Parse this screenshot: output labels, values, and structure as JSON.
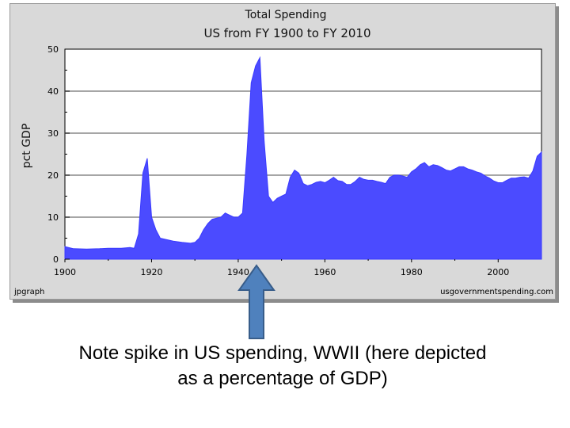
{
  "chart_data": {
    "type": "area",
    "title": "Total Spending",
    "subtitle": "US from FY 1900 to FY 2010",
    "ylabel": "pct GDP",
    "xlabel": "",
    "xlim": [
      1900,
      2010
    ],
    "ylim": [
      0,
      50
    ],
    "x_ticks": [
      "1900",
      "1920",
      "1940",
      "1960",
      "1980",
      "2000"
    ],
    "y_ticks": [
      "0",
      "10",
      "20",
      "30",
      "40",
      "50"
    ],
    "grid": true,
    "fill_color": "#4b4bff",
    "points": [
      [
        1900,
        3.0
      ],
      [
        1902,
        2.5
      ],
      [
        1905,
        2.4
      ],
      [
        1908,
        2.5
      ],
      [
        1910,
        2.6
      ],
      [
        1913,
        2.6
      ],
      [
        1915,
        2.8
      ],
      [
        1916,
        2.6
      ],
      [
        1917,
        6.0
      ],
      [
        1918,
        20.5
      ],
      [
        1919,
        24.0
      ],
      [
        1920,
        10.0
      ],
      [
        1921,
        7.0
      ],
      [
        1922,
        5.0
      ],
      [
        1925,
        4.3
      ],
      [
        1927,
        4.0
      ],
      [
        1929,
        3.8
      ],
      [
        1930,
        4.0
      ],
      [
        1931,
        5.0
      ],
      [
        1932,
        7.0
      ],
      [
        1933,
        8.5
      ],
      [
        1934,
        9.5
      ],
      [
        1936,
        10.0
      ],
      [
        1937,
        11.0
      ],
      [
        1938,
        10.5
      ],
      [
        1939,
        10.0
      ],
      [
        1940,
        10.0
      ],
      [
        1941,
        11.0
      ],
      [
        1942,
        25.0
      ],
      [
        1943,
        42.0
      ],
      [
        1944,
        46.0
      ],
      [
        1945,
        48.0
      ],
      [
        1946,
        28.0
      ],
      [
        1947,
        15.0
      ],
      [
        1948,
        13.5
      ],
      [
        1949,
        14.5
      ],
      [
        1950,
        15.0
      ],
      [
        1951,
        15.5
      ],
      [
        1952,
        19.5
      ],
      [
        1953,
        21.2
      ],
      [
        1954,
        20.5
      ],
      [
        1955,
        18.0
      ],
      [
        1956,
        17.5
      ],
      [
        1957,
        17.8
      ],
      [
        1958,
        18.3
      ],
      [
        1959,
        18.5
      ],
      [
        1960,
        18.2
      ],
      [
        1961,
        18.8
      ],
      [
        1962,
        19.5
      ],
      [
        1963,
        18.7
      ],
      [
        1964,
        18.5
      ],
      [
        1965,
        17.8
      ],
      [
        1966,
        17.8
      ],
      [
        1967,
        18.5
      ],
      [
        1968,
        19.5
      ],
      [
        1969,
        19.0
      ],
      [
        1970,
        18.8
      ],
      [
        1971,
        18.8
      ],
      [
        1972,
        18.5
      ],
      [
        1973,
        18.3
      ],
      [
        1974,
        18.0
      ],
      [
        1975,
        19.5
      ],
      [
        1976,
        20.0
      ],
      [
        1977,
        20.0
      ],
      [
        1978,
        19.8
      ],
      [
        1979,
        19.5
      ],
      [
        1980,
        20.8
      ],
      [
        1981,
        21.5
      ],
      [
        1982,
        22.5
      ],
      [
        1983,
        23.0
      ],
      [
        1984,
        22.0
      ],
      [
        1985,
        22.5
      ],
      [
        1986,
        22.3
      ],
      [
        1987,
        21.8
      ],
      [
        1988,
        21.2
      ],
      [
        1989,
        21.0
      ],
      [
        1990,
        21.5
      ],
      [
        1991,
        22.0
      ],
      [
        1992,
        22.0
      ],
      [
        1993,
        21.5
      ],
      [
        1994,
        21.2
      ],
      [
        1995,
        20.8
      ],
      [
        1996,
        20.5
      ],
      [
        1997,
        19.8
      ],
      [
        1998,
        19.3
      ],
      [
        1999,
        18.6
      ],
      [
        2000,
        18.2
      ],
      [
        2001,
        18.2
      ],
      [
        2002,
        18.8
      ],
      [
        2003,
        19.3
      ],
      [
        2004,
        19.3
      ],
      [
        2005,
        19.5
      ],
      [
        2006,
        19.6
      ],
      [
        2007,
        19.3
      ],
      [
        2008,
        21.0
      ],
      [
        2009,
        24.5
      ],
      [
        2010,
        25.5
      ]
    ]
  },
  "footer": {
    "left": "jpgraph",
    "right": "usgovernmentspending.com"
  },
  "arrow": {
    "fill_color": "#4f81bd",
    "stroke_color": "#385d8a"
  },
  "caption": {
    "line1": "Note spike in US spending, WWII (here depicted",
    "line2": "as a percentage of GDP)"
  }
}
